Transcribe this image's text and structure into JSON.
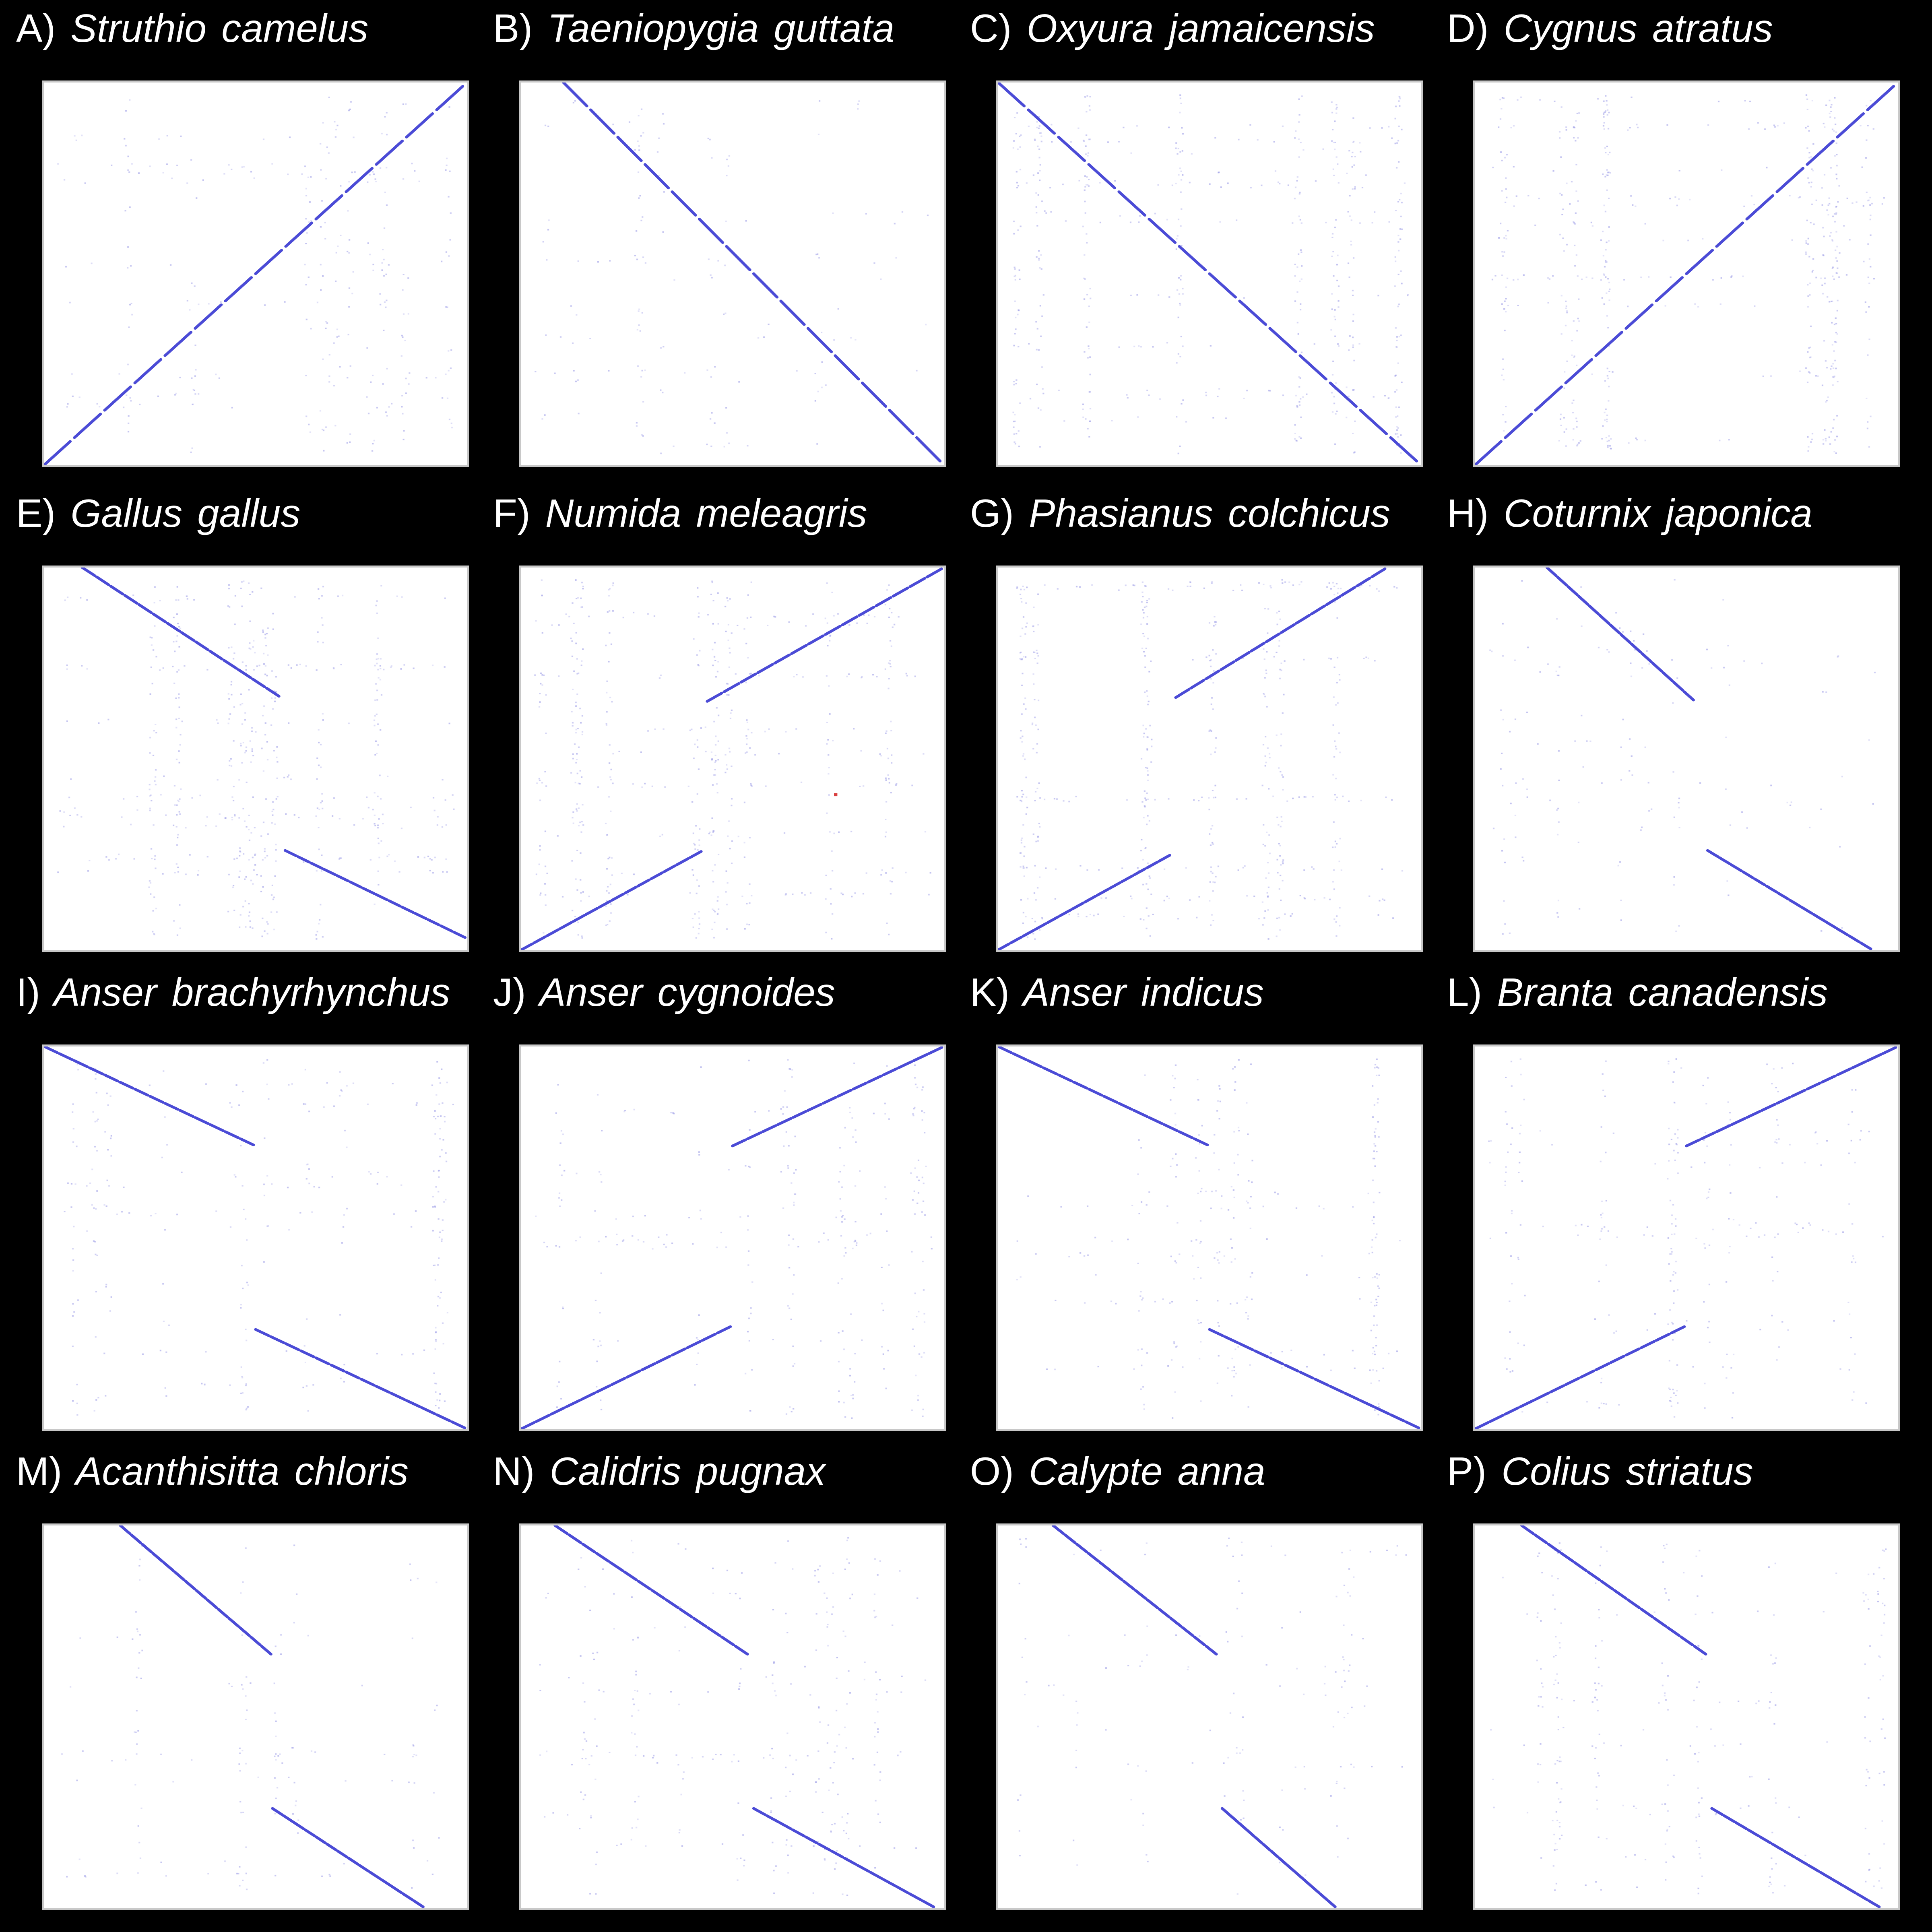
{
  "figure": {
    "background": "#000000",
    "plot_background": "#ffffff",
    "line_color": "#4b4bd6",
    "noise_color": "#9a9ae6",
    "highlight_color": "#d94040",
    "panels": [
      {
        "letter": "A)",
        "species": "Struthio camelus",
        "segments": [
          [
            0,
            0,
            1,
            1
          ]
        ],
        "noise": "light"
      },
      {
        "letter": "B)",
        "species": "Taeniopygia guttata",
        "segments": [
          [
            0.1,
            1,
            1,
            0
          ]
        ],
        "noise": "sparse"
      },
      {
        "letter": "C)",
        "species": "Oxyura jamaicensis",
        "segments": [
          [
            0,
            1,
            1,
            0
          ]
        ],
        "noise": "dense"
      },
      {
        "letter": "D)",
        "species": "Cygnus atratus",
        "segments": [
          [
            0,
            0,
            1,
            1
          ]
        ],
        "noise": "dense"
      },
      {
        "letter": "E)",
        "species": "Gallus gallus",
        "segments": [
          [
            0.09,
            1,
            0.56,
            0.66
          ],
          [
            0.57,
            0.26,
            1,
            0.03
          ]
        ],
        "noise": "dense"
      },
      {
        "letter": "F)",
        "species": "Numida meleagris",
        "segments": [
          [
            0,
            0,
            0.43,
            0.26
          ],
          [
            0.44,
            0.65,
            1,
            1
          ]
        ],
        "noise": "dense",
        "highlight": [
          0.74,
          0.41
        ]
      },
      {
        "letter": "G)",
        "species": "Phasianus colchicus",
        "segments": [
          [
            0,
            0,
            0.41,
            0.25
          ],
          [
            0.42,
            0.66,
            0.92,
            1
          ]
        ],
        "noise": "dense"
      },
      {
        "letter": "H)",
        "species": "Coturnix japonica",
        "segments": [
          [
            0.17,
            1,
            0.52,
            0.65
          ],
          [
            0.55,
            0.26,
            0.94,
            0
          ]
        ],
        "noise": "sparse"
      },
      {
        "letter": "I)",
        "species": "Anser brachyrhynchus",
        "segments": [
          [
            0,
            1,
            0.5,
            0.74
          ],
          [
            0.5,
            0.26,
            1,
            0
          ]
        ],
        "noise": "light"
      },
      {
        "letter": "J)",
        "species": "Anser cygnoides",
        "segments": [
          [
            0,
            0,
            0.5,
            0.27
          ],
          [
            0.5,
            0.74,
            1,
            1
          ]
        ],
        "noise": "light"
      },
      {
        "letter": "K)",
        "species": "Anser indicus",
        "segments": [
          [
            0,
            1,
            0.5,
            0.74
          ],
          [
            0.5,
            0.26,
            1,
            0
          ]
        ],
        "noise": "light"
      },
      {
        "letter": "L)",
        "species": "Branta canadensis",
        "segments": [
          [
            0,
            0,
            0.5,
            0.27
          ],
          [
            0.5,
            0.74,
            1,
            1
          ]
        ],
        "noise": "light"
      },
      {
        "letter": "M)",
        "species": "Acanthisitta chloris",
        "segments": [
          [
            0.18,
            1,
            0.54,
            0.66
          ],
          [
            0.54,
            0.26,
            0.9,
            0
          ]
        ],
        "noise": "sparse"
      },
      {
        "letter": "N)",
        "species": "Calidris pugnax",
        "segments": [
          [
            0.08,
            1,
            0.54,
            0.66
          ],
          [
            0.55,
            0.26,
            0.98,
            0
          ]
        ],
        "noise": "light"
      },
      {
        "letter": "O)",
        "species": "Calypte anna",
        "segments": [
          [
            0.13,
            1,
            0.52,
            0.66
          ],
          [
            0.53,
            0.26,
            0.8,
            0
          ]
        ],
        "noise": "sparse"
      },
      {
        "letter": "P)",
        "species": "Colius striatus",
        "segments": [
          [
            0.11,
            1,
            0.55,
            0.66
          ],
          [
            0.56,
            0.26,
            0.96,
            0
          ]
        ],
        "noise": "light"
      }
    ]
  }
}
